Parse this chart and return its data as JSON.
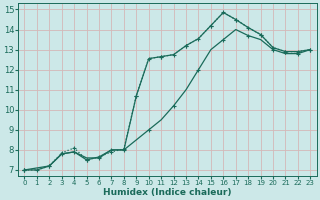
{
  "xlabel": "Humidex (Indice chaleur)",
  "bg_color": "#cce8e8",
  "grid_color": "#e8c8c8",
  "line_color": "#1a6b5a",
  "xlim": [
    -0.5,
    23.5
  ],
  "ylim": [
    6.7,
    15.3
  ],
  "xticks": [
    0,
    1,
    2,
    3,
    4,
    5,
    6,
    7,
    8,
    9,
    10,
    11,
    12,
    13,
    14,
    15,
    16,
    17,
    18,
    19,
    20,
    21,
    22,
    23
  ],
  "yticks": [
    7,
    8,
    9,
    10,
    11,
    12,
    13,
    14,
    15
  ],
  "line1_x": [
    0,
    1,
    2,
    3,
    4,
    5,
    6,
    7,
    8,
    9,
    10,
    11,
    12,
    13,
    14,
    15,
    16,
    17,
    18,
    19,
    20,
    21,
    22,
    23
  ],
  "line1_y": [
    7.0,
    7.0,
    7.2,
    7.8,
    7.9,
    7.6,
    7.6,
    8.0,
    8.0,
    8.5,
    9.0,
    9.5,
    10.2,
    11.0,
    12.0,
    13.0,
    13.5,
    14.0,
    13.7,
    13.5,
    13.0,
    12.8,
    12.8,
    13.0
  ],
  "line2_x": [
    0,
    1,
    2,
    3,
    4,
    5,
    6,
    7,
    8,
    9,
    10,
    11,
    12,
    13,
    14,
    15,
    16,
    17,
    18,
    19,
    20,
    21,
    22,
    23
  ],
  "line2_y": [
    7.0,
    7.0,
    7.2,
    7.85,
    8.1,
    7.5,
    7.65,
    7.9,
    8.05,
    10.7,
    12.55,
    12.65,
    12.75,
    13.2,
    13.55,
    14.2,
    14.85,
    14.5,
    14.1,
    13.75,
    13.1,
    12.9,
    12.9,
    13.0
  ],
  "line3_x": [
    0,
    2,
    3,
    4,
    5,
    6,
    7,
    8,
    9,
    10,
    11,
    12,
    13,
    14,
    15,
    16,
    17,
    18,
    19,
    20,
    21,
    22,
    23
  ],
  "line3_y": [
    7.0,
    7.2,
    7.8,
    7.9,
    7.5,
    7.65,
    8.0,
    8.0,
    10.7,
    12.55,
    12.65,
    12.75,
    13.2,
    13.55,
    14.2,
    14.85,
    14.5,
    14.1,
    13.75,
    13.1,
    12.9,
    12.9,
    13.0
  ]
}
